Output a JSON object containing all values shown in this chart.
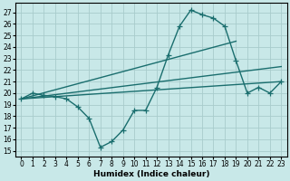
{
  "bg_color": "#c8e8e8",
  "grid_color": "#a8cccc",
  "line_color": "#1a6e6e",
  "xlabel": "Humidex (Indice chaleur)",
  "xlim": [
    -0.5,
    23.5
  ],
  "ylim": [
    14.5,
    27.8
  ],
  "yticks": [
    15,
    16,
    17,
    18,
    19,
    20,
    21,
    22,
    23,
    24,
    25,
    26,
    27
  ],
  "xticks": [
    0,
    1,
    2,
    3,
    4,
    5,
    6,
    7,
    8,
    9,
    10,
    11,
    12,
    13,
    14,
    15,
    16,
    17,
    18,
    19,
    20,
    21,
    22,
    23
  ],
  "series": [
    {
      "x": [
        0,
        1,
        2,
        3,
        4,
        5,
        6,
        7,
        8,
        9,
        10,
        11,
        12,
        13,
        14,
        15,
        16,
        17,
        18,
        19,
        20,
        21,
        22,
        23
      ],
      "y": [
        19.5,
        20.0,
        19.8,
        19.7,
        19.5,
        18.8,
        17.8,
        15.3,
        15.8,
        16.8,
        18.5,
        18.5,
        20.5,
        23.3,
        25.8,
        27.2,
        26.8,
        26.5,
        25.8,
        22.8,
        20.0,
        20.5,
        20.0,
        21.0
      ],
      "has_markers": true
    },
    {
      "x": [
        0,
        23
      ],
      "y": [
        19.5,
        21.0
      ],
      "has_markers": false
    },
    {
      "x": [
        0,
        19
      ],
      "y": [
        19.5,
        24.5
      ],
      "has_markers": false
    },
    {
      "x": [
        0,
        23
      ],
      "y": [
        19.5,
        22.3
      ],
      "has_markers": false
    }
  ],
  "marker": "+",
  "markersize": 4,
  "markeredgewidth": 0.9,
  "linewidth": 1.0,
  "tick_labelsize": 5.5,
  "xlabel_fontsize": 6.5
}
